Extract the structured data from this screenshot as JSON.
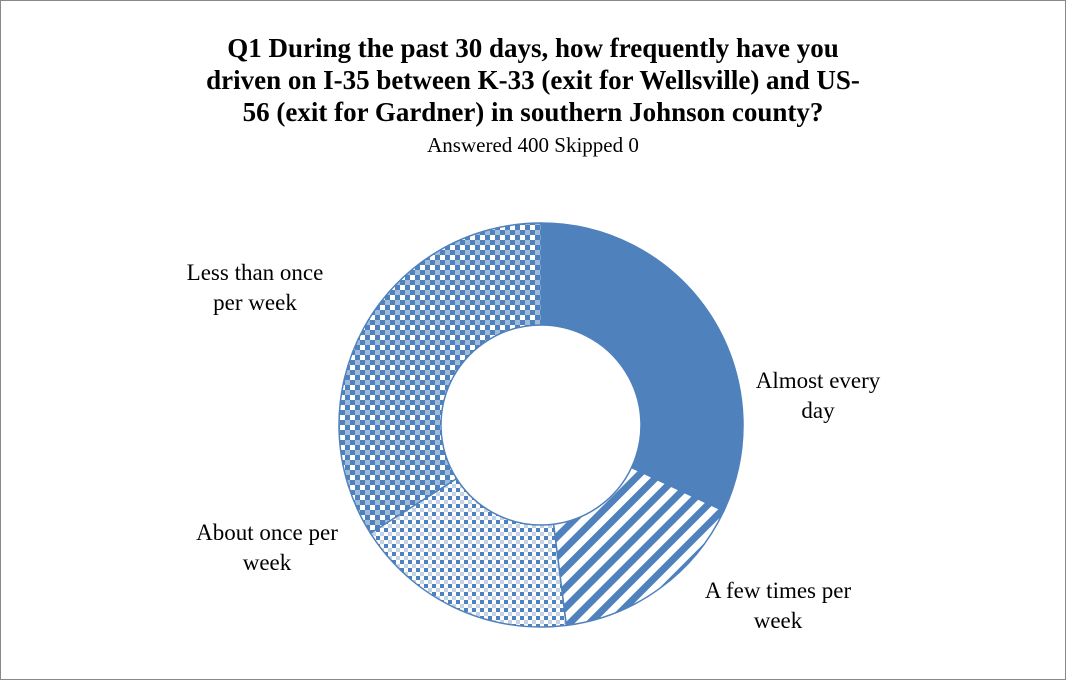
{
  "chart_data": {
    "type": "pie",
    "variant": "donut",
    "title_lines": [
      "Q1 During the past 30 days, how frequently have you",
      "driven on I-35 between K-33 (exit for Wellsville) and US-",
      "56 (exit for Gardner) in southern Johnson county?"
    ],
    "subtitle": "Answered 400 Skipped 0",
    "slices": [
      {
        "label_lines": [
          "Almost every",
          "day"
        ],
        "value": 32,
        "fill": "solid",
        "color": "#4f81bd"
      },
      {
        "label_lines": [
          "A few times per",
          "week"
        ],
        "value": 16,
        "fill": "diagonal-stripes",
        "color": "#4f81bd"
      },
      {
        "label_lines": [
          "About once per",
          "week"
        ],
        "value": 18,
        "fill": "small-dots",
        "color": "#4f81bd"
      },
      {
        "label_lines": [
          "Less than once",
          "per week"
        ],
        "value": 34,
        "fill": "large-checker",
        "color": "#4f81bd"
      }
    ],
    "legend": "none",
    "data_labels": "outside-category-names"
  }
}
